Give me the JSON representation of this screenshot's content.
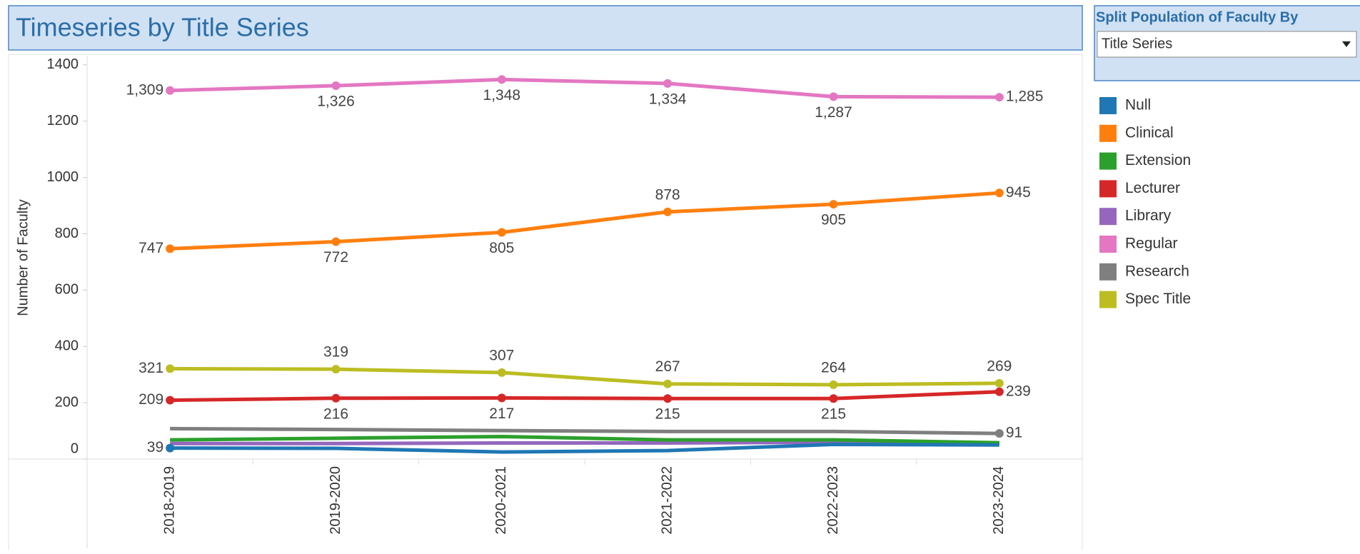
{
  "chart_data": {
    "type": "line",
    "title": "Timeseries by Title Series",
    "y_label": "Number of Faculty",
    "categories": [
      "2018-2019",
      "2019-2020",
      "2020-2021",
      "2021-2022",
      "2022-2023",
      "2023-2024"
    ],
    "ylim": [
      0,
      1430
    ],
    "yticks": [
      0,
      200,
      400,
      600,
      800,
      1000,
      1200,
      1400
    ],
    "legend": "right",
    "series": [
      {
        "name": "Null",
        "color": "#1f77b4",
        "values": [
          39,
          38,
          25,
          30,
          52,
          50
        ],
        "value_labels": [
          "39",
          null,
          null,
          null,
          null,
          null
        ]
      },
      {
        "name": "Clinical",
        "color": "#ff7f0e",
        "values": [
          747,
          772,
          805,
          878,
          905,
          945
        ],
        "value_labels": [
          "747",
          "772",
          "805",
          "878",
          "905",
          "945"
        ]
      },
      {
        "name": "Extension",
        "color": "#2ca02c",
        "values": [
          68,
          74,
          80,
          68,
          68,
          58
        ],
        "value_labels": [
          null,
          null,
          null,
          null,
          null,
          null
        ]
      },
      {
        "name": "Lecturer",
        "color": "#d62728",
        "values": [
          209,
          216,
          217,
          215,
          215,
          239
        ],
        "value_labels": [
          "209",
          "216",
          "217",
          "215",
          "215",
          "239"
        ]
      },
      {
        "name": "Library",
        "color": "#9467bd",
        "values": [
          55,
          55,
          57,
          57,
          60,
          57
        ],
        "value_labels": [
          null,
          null,
          null,
          null,
          null,
          null
        ]
      },
      {
        "name": "Regular",
        "color": "#e377c2",
        "values": [
          1309,
          1326,
          1348,
          1334,
          1287,
          1285
        ],
        "value_labels": [
          "1,309",
          "1,326",
          "1,348",
          "1,334",
          "1,287",
          "1,285"
        ]
      },
      {
        "name": "Research",
        "color": "#7f7f7f",
        "values": [
          108,
          105,
          101,
          98,
          98,
          91
        ],
        "value_labels": [
          null,
          null,
          null,
          null,
          null,
          "91"
        ]
      },
      {
        "name": "Spec Title",
        "color": "#bcbd22",
        "values": [
          321,
          319,
          307,
          267,
          264,
          269
        ],
        "value_labels": [
          "321",
          "319",
          "307",
          "267",
          "264",
          "269"
        ]
      }
    ]
  },
  "filter": {
    "title": "Split Population of Faculty By",
    "selected": "Title Series"
  }
}
